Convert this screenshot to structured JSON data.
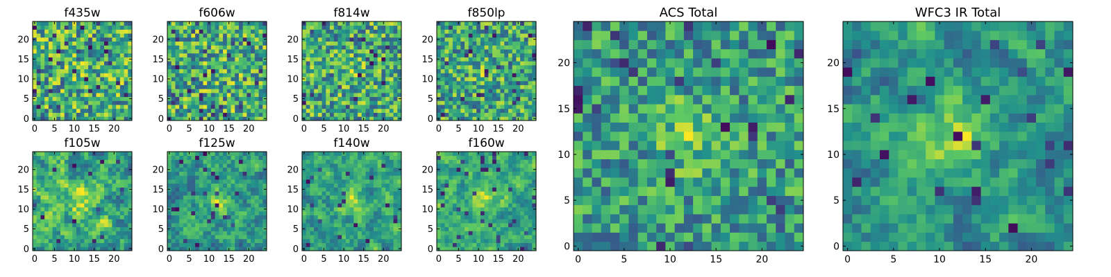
{
  "figure": {
    "colormap": "viridis",
    "colormap_stops": [
      "#440154",
      "#3b528b",
      "#21918c",
      "#5ec962",
      "#fde725"
    ],
    "background": "#ffffff"
  },
  "chart_data": [
    {
      "type": "heatmap",
      "title": "f435w",
      "grid": [
        25,
        25
      ],
      "xlim": [
        -0.5,
        24.5
      ],
      "ylim": [
        -0.5,
        24.5
      ],
      "xticks": [
        "0",
        "5",
        "10",
        "15",
        "20"
      ],
      "yticks": [
        "0",
        "5",
        "10",
        "15",
        "20"
      ],
      "seed": 11,
      "smooth": 0,
      "peak": 0.1,
      "dark": 0.06
    },
    {
      "type": "heatmap",
      "title": "f606w",
      "grid": [
        25,
        25
      ],
      "xlim": [
        -0.5,
        24.5
      ],
      "ylim": [
        -0.5,
        24.5
      ],
      "xticks": [
        "0",
        "5",
        "10",
        "15",
        "20"
      ],
      "yticks": [
        "0",
        "5",
        "10",
        "15",
        "20"
      ],
      "seed": 23,
      "smooth": 0,
      "peak": 0.12,
      "dark": 0.05
    },
    {
      "type": "heatmap",
      "title": "f814w",
      "grid": [
        25,
        25
      ],
      "xlim": [
        -0.5,
        24.5
      ],
      "ylim": [
        -0.5,
        24.5
      ],
      "xticks": [
        "0",
        "5",
        "10",
        "15",
        "20"
      ],
      "yticks": [
        "0",
        "5",
        "10",
        "15",
        "20"
      ],
      "seed": 37,
      "smooth": 0,
      "peak": 0.15,
      "dark": 0.04
    },
    {
      "type": "heatmap",
      "title": "f850lp",
      "grid": [
        25,
        25
      ],
      "xlim": [
        -0.5,
        24.5
      ],
      "ylim": [
        -0.5,
        24.5
      ],
      "xticks": [
        "0",
        "5",
        "10",
        "15",
        "20"
      ],
      "yticks": [
        "0",
        "5",
        "10",
        "15",
        "20"
      ],
      "seed": 41,
      "smooth": 0,
      "peak": 0.2,
      "dark": 0.05
    },
    {
      "type": "heatmap",
      "title": "f105w",
      "grid": [
        25,
        25
      ],
      "xlim": [
        -0.5,
        24.5
      ],
      "ylim": [
        -0.5,
        24.5
      ],
      "xticks": [
        "0",
        "5",
        "10",
        "15",
        "20"
      ],
      "yticks": [
        "0",
        "5",
        "10",
        "15",
        "20"
      ],
      "seed": 53,
      "smooth": 1,
      "peak": 0.25,
      "dark": 0.03
    },
    {
      "type": "heatmap",
      "title": "f125w",
      "grid": [
        25,
        25
      ],
      "xlim": [
        -0.5,
        24.5
      ],
      "ylim": [
        -0.5,
        24.5
      ],
      "xticks": [
        "0",
        "5",
        "10",
        "15",
        "20"
      ],
      "yticks": [
        "0",
        "5",
        "10",
        "15",
        "20"
      ],
      "seed": 67,
      "smooth": 1,
      "peak": 0.3,
      "dark": 0.03
    },
    {
      "type": "heatmap",
      "title": "f140w",
      "grid": [
        25,
        25
      ],
      "xlim": [
        -0.5,
        24.5
      ],
      "ylim": [
        -0.5,
        24.5
      ],
      "xticks": [
        "0",
        "5",
        "10",
        "15",
        "20"
      ],
      "yticks": [
        "0",
        "5",
        "10",
        "15",
        "20"
      ],
      "seed": 79,
      "smooth": 1,
      "peak": 0.35,
      "dark": 0.04
    },
    {
      "type": "heatmap",
      "title": "f160w",
      "grid": [
        25,
        25
      ],
      "xlim": [
        -0.5,
        24.5
      ],
      "ylim": [
        -0.5,
        24.5
      ],
      "xticks": [
        "0",
        "5",
        "10",
        "15",
        "20"
      ],
      "yticks": [
        "0",
        "5",
        "10",
        "15",
        "20"
      ],
      "seed": 83,
      "smooth": 1,
      "peak": 0.45,
      "dark": 0.06
    },
    {
      "type": "heatmap",
      "title": "ACS Total",
      "grid": [
        25,
        25
      ],
      "xlim": [
        -0.5,
        24.5
      ],
      "ylim": [
        -0.5,
        24.5
      ],
      "xticks": [
        "0",
        "5",
        "10",
        "15",
        "20"
      ],
      "yticks": [
        "0",
        "5",
        "10",
        "15",
        "20"
      ],
      "seed": 97,
      "smooth": 0,
      "peak": 0.45,
      "dark": 0.05
    },
    {
      "type": "heatmap",
      "title": "WFC3 IR Total",
      "grid": [
        25,
        25
      ],
      "xlim": [
        -0.5,
        24.5
      ],
      "ylim": [
        -0.5,
        24.5
      ],
      "xticks": [
        "0",
        "5",
        "10",
        "15",
        "20"
      ],
      "yticks": [
        "0",
        "5",
        "10",
        "15",
        "20"
      ],
      "seed": 101,
      "smooth": 1,
      "peak": 0.55,
      "dark": 0.04
    }
  ]
}
